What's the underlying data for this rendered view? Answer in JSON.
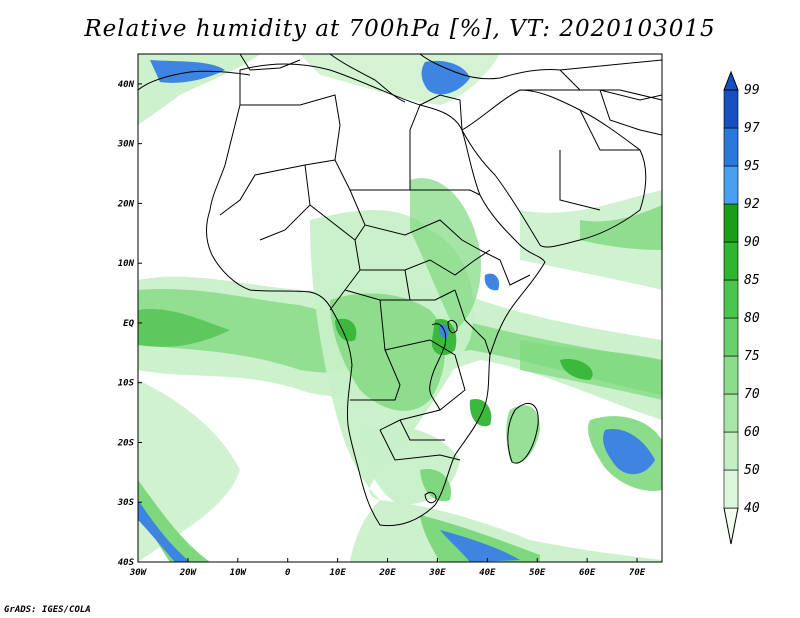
{
  "title": "Relative humidity at 700hPa [%], VT: 2020103015",
  "credit": "GrADS: IGES/COLA",
  "map": {
    "lon_range": [
      -30,
      75
    ],
    "lat_range": [
      -40,
      45
    ],
    "lon_ticks": [
      "30W",
      "20W",
      "10W",
      "0",
      "10E",
      "20E",
      "30E",
      "40E",
      "50E",
      "60E",
      "70E"
    ],
    "lat_ticks": [
      "40N",
      "30N",
      "20N",
      "10N",
      "EQ",
      "10S",
      "20S",
      "30S",
      "40S"
    ]
  },
  "colorbar": {
    "levels": [
      "40",
      "50",
      "60",
      "70",
      "75",
      "80",
      "85",
      "90",
      "92",
      "95",
      "97",
      "99"
    ],
    "colors": [
      "#f0fff0",
      "#dcf7dc",
      "#c4efc4",
      "#a8e6a8",
      "#8adc8a",
      "#6ad16a",
      "#4cc54c",
      "#2fb52f",
      "#1a9e1a",
      "#4a9ff0",
      "#2a78dc",
      "#1650c0"
    ]
  },
  "palette": {
    "outline": "#000000",
    "land_dry": "#ffffff",
    "light_green": "#c8f0c8",
    "mid_green": "#7ed87e",
    "dark_green": "#3cb93c",
    "blue": "#3d85e0"
  }
}
